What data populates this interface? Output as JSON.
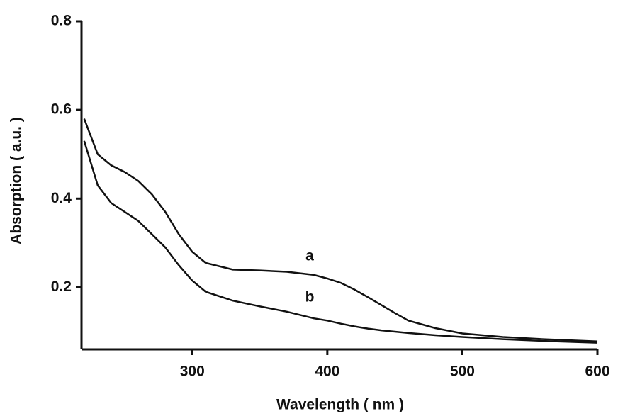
{
  "chart_data": {
    "type": "line",
    "x_label": "Wavelength ( nm )",
    "y_label": "Absorption ( a.u. )",
    "x": [
      220,
      230,
      240,
      250,
      260,
      270,
      280,
      290,
      300,
      310,
      330,
      350,
      370,
      390,
      400,
      410,
      420,
      430,
      440,
      450,
      460,
      480,
      500,
      530,
      560,
      600
    ],
    "series": [
      {
        "name": "a",
        "color": "#111111",
        "values": [
          0.58,
          0.5,
          0.475,
          0.46,
          0.44,
          0.41,
          0.37,
          0.32,
          0.28,
          0.255,
          0.24,
          0.238,
          0.235,
          0.228,
          0.22,
          0.21,
          0.195,
          0.178,
          0.16,
          0.142,
          0.125,
          0.108,
          0.096,
          0.088,
          0.083,
          0.078
        ]
      },
      {
        "name": "b",
        "color": "#111111",
        "values": [
          0.53,
          0.43,
          0.39,
          0.37,
          0.35,
          0.32,
          0.29,
          0.25,
          0.215,
          0.19,
          0.17,
          0.157,
          0.145,
          0.13,
          0.125,
          0.118,
          0.112,
          0.107,
          0.103,
          0.1,
          0.097,
          0.092,
          0.088,
          0.083,
          0.079,
          0.075
        ]
      }
    ],
    "xlim": [
      218,
      600
    ],
    "xticks": [
      300,
      400,
      500,
      600
    ],
    "ylim": [
      0.06,
      0.8
    ],
    "yticks": [
      0.2,
      0.4,
      0.6,
      0.8
    ]
  }
}
